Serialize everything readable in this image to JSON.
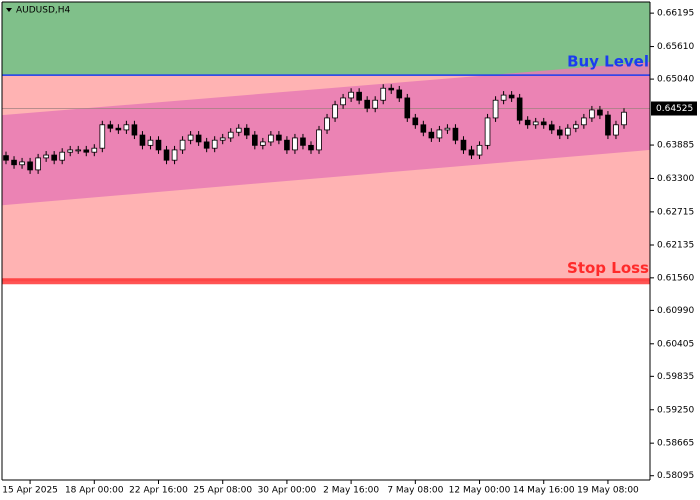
{
  "chart_data": {
    "type": "candlestick",
    "title": "AUDUSD,H4",
    "categories": [
      null,
      null,
      null,
      "15 Apr 2025",
      null,
      null,
      null,
      null,
      null,
      null,
      null,
      "18 Apr 00:00",
      null,
      null,
      null,
      null,
      null,
      null,
      null,
      "22 Apr 16:00",
      null,
      null,
      null,
      null,
      null,
      null,
      null,
      "25 Apr 08:00",
      null,
      null,
      null,
      null,
      null,
      null,
      null,
      "30 Apr 00:00",
      null,
      null,
      null,
      null,
      null,
      null,
      null,
      "2 May 16:00",
      null,
      null,
      null,
      null,
      null,
      null,
      null,
      "7 May 08:00",
      null,
      null,
      null,
      null,
      null,
      null,
      null,
      "12 May 00:00",
      null,
      null,
      null,
      null,
      null,
      null,
      null,
      "14 May 16:00",
      null,
      null,
      null,
      null,
      null,
      null,
      null,
      "19 May 08:00",
      null,
      null
    ],
    "open": [
      0.637,
      0.6362,
      0.6354,
      0.6359,
      0.6345,
      0.6366,
      0.6371,
      0.6362,
      0.6376,
      0.638,
      0.638,
      0.6376,
      0.6383,
      0.6424,
      0.6418,
      0.6415,
      0.6424,
      0.6406,
      0.6388,
      0.6397,
      0.638,
      0.6362,
      0.638,
      0.6397,
      0.6406,
      0.6394,
      0.6383,
      0.6397,
      0.6401,
      0.6411,
      0.6418,
      0.6406,
      0.6388,
      0.6394,
      0.6406,
      0.6397,
      0.638,
      0.6401,
      0.6388,
      0.638,
      0.6415,
      0.6436,
      0.6459,
      0.6471,
      0.6481,
      0.6467,
      0.6453,
      0.6467,
      0.6488,
      0.6485,
      0.6471,
      0.6436,
      0.6424,
      0.6411,
      0.6401,
      0.6415,
      0.6418,
      0.6397,
      0.638,
      0.6371,
      0.6388,
      0.6436,
      0.6467,
      0.6476,
      0.6471,
      0.6432,
      0.6424,
      0.6429,
      0.6424,
      0.6415,
      0.6406,
      0.6418,
      0.6424,
      0.6436,
      0.645,
      0.6441,
      0.6406,
      0.6424
    ],
    "high": [
      0.6377,
      0.6369,
      0.6366,
      0.6366,
      0.6373,
      0.6378,
      0.6378,
      0.6383,
      0.6387,
      0.6387,
      0.6387,
      0.639,
      0.6431,
      0.6431,
      0.6425,
      0.6431,
      0.6431,
      0.6413,
      0.6404,
      0.6404,
      0.6387,
      0.6387,
      0.6404,
      0.6413,
      0.6413,
      0.6401,
      0.6404,
      0.6408,
      0.6418,
      0.6425,
      0.6425,
      0.6413,
      0.6401,
      0.6413,
      0.6413,
      0.6404,
      0.6408,
      0.6408,
      0.6395,
      0.6422,
      0.6443,
      0.6466,
      0.6478,
      0.6488,
      0.6488,
      0.6474,
      0.6474,
      0.6495,
      0.6495,
      0.6492,
      0.6478,
      0.6443,
      0.6431,
      0.6418,
      0.6422,
      0.6425,
      0.6425,
      0.6404,
      0.6387,
      0.6395,
      0.6443,
      0.6474,
      0.6483,
      0.6483,
      0.6478,
      0.6439,
      0.6436,
      0.6436,
      0.6431,
      0.6422,
      0.6425,
      0.6431,
      0.6443,
      0.6457,
      0.6457,
      0.6448,
      0.6431,
      0.6453
    ],
    "low": [
      0.6355,
      0.6347,
      0.6347,
      0.6338,
      0.6338,
      0.6359,
      0.6355,
      0.6355,
      0.6369,
      0.6373,
      0.6369,
      0.6369,
      0.6376,
      0.6411,
      0.6408,
      0.6408,
      0.6399,
      0.6381,
      0.6381,
      0.6373,
      0.6355,
      0.6355,
      0.6373,
      0.639,
      0.6387,
      0.6376,
      0.6376,
      0.639,
      0.6394,
      0.6404,
      0.6399,
      0.6381,
      0.6381,
      0.6387,
      0.639,
      0.6373,
      0.6373,
      0.6381,
      0.6373,
      0.6373,
      0.6408,
      0.6429,
      0.6452,
      0.6464,
      0.646,
      0.6446,
      0.6446,
      0.646,
      0.6478,
      0.6464,
      0.6429,
      0.6417,
      0.6404,
      0.6394,
      0.6394,
      0.6408,
      0.639,
      0.6373,
      0.6364,
      0.6364,
      0.6381,
      0.6429,
      0.646,
      0.6464,
      0.6425,
      0.6417,
      0.6417,
      0.6417,
      0.6408,
      0.6399,
      0.6399,
      0.6411,
      0.6417,
      0.6429,
      0.6434,
      0.6399,
      0.6399,
      0.6417
    ],
    "close": [
      0.6362,
      0.6354,
      0.6359,
      0.6345,
      0.6366,
      0.6371,
      0.6362,
      0.6376,
      0.638,
      0.638,
      0.6376,
      0.6383,
      0.6424,
      0.6418,
      0.6415,
      0.6424,
      0.6406,
      0.6388,
      0.6397,
      0.638,
      0.6362,
      0.638,
      0.6397,
      0.6406,
      0.6394,
      0.6383,
      0.6397,
      0.6401,
      0.6411,
      0.6418,
      0.6406,
      0.6388,
      0.6394,
      0.6406,
      0.6397,
      0.638,
      0.6401,
      0.6388,
      0.638,
      0.6415,
      0.6436,
      0.6459,
      0.6471,
      0.6481,
      0.6467,
      0.6453,
      0.6467,
      0.6488,
      0.6485,
      0.6471,
      0.6436,
      0.6424,
      0.6411,
      0.6401,
      0.6415,
      0.6418,
      0.6397,
      0.638,
      0.6371,
      0.6388,
      0.6436,
      0.6467,
      0.6476,
      0.6471,
      0.6432,
      0.6424,
      0.6429,
      0.6424,
      0.6415,
      0.6406,
      0.6418,
      0.6424,
      0.6436,
      0.645,
      0.6441,
      0.6406,
      0.6424,
      0.6446
    ],
    "ylim": [
      0.5802,
      0.6639
    ],
    "yticks": [
      0.66195,
      {
        "value": 0.6561,
        "label": "0.65610"
      },
      {
        "value": 0.6504,
        "label": "0.65040"
      },
      0.63885,
      {
        "value": 0.633,
        "label": "0.63300"
      },
      0.62715,
      0.62135,
      {
        "value": 0.6156,
        "label": "0.61560"
      },
      {
        "value": 0.6099,
        "label": "0.60990"
      },
      0.60405,
      0.59835,
      {
        "value": 0.5925,
        "label": "0.59250"
      },
      0.58665,
      0.58095
    ],
    "current_price": 0.64525,
    "buy_level": {
      "label": "Buy Level",
      "value": 0.6511,
      "color": "#1b3cf0"
    },
    "stop_loss": {
      "label": "Stop Loss",
      "value": 0.615,
      "color": "#ff2a2a"
    },
    "channel": {
      "upper": [
        0.6441,
        0.6534
      ],
      "lower": [
        0.6283,
        0.638
      ],
      "color": "#e87ab4"
    },
    "profit_zone_color": "#80c08a",
    "risk_zone_color": "#ffb3b3"
  }
}
